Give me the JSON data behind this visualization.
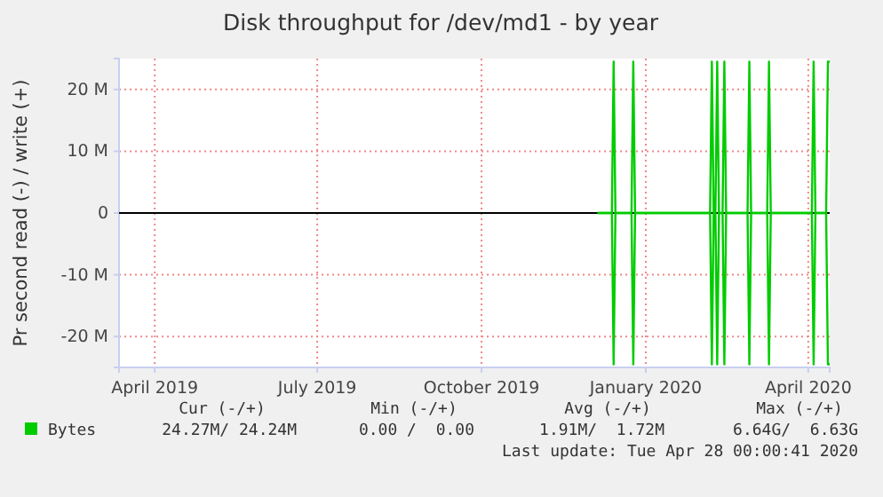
{
  "chart_data": {
    "type": "line",
    "title": "Disk throughput for /dev/md1 - by year",
    "ylabel": "Pr second read (-) / write (+)",
    "xlim": [
      "2019-03-27",
      "2020-04-28"
    ],
    "xticks": [
      {
        "value": "2019-04-16",
        "label": "April 2019"
      },
      {
        "value": "2019-07-16",
        "label": "July 2019"
      },
      {
        "value": "2019-10-16",
        "label": "October 2019"
      },
      {
        "value": "2020-01-16",
        "label": "January 2020"
      },
      {
        "value": "2020-04-16",
        "label": "April 2020"
      }
    ],
    "ylim": [
      -25000000,
      25000000
    ],
    "yticks": [
      {
        "value": -20000000,
        "label": "-20 M"
      },
      {
        "value": -10000000,
        "label": "-10 M"
      },
      0,
      {
        "value": 10000000,
        "label": "10 M"
      },
      {
        "value": 20000000,
        "label": "20 M"
      }
    ],
    "grid": true,
    "legend": "bottom left",
    "x": [
      "2019-12-20",
      "2019-12-28",
      "2019-12-29",
      "2019-12-30",
      "2020-01-08",
      "2020-01-09",
      "2020-01-10",
      "2020-02-21",
      "2020-02-22",
      "2020-02-23",
      "2020-02-24",
      "2020-02-25",
      "2020-02-26",
      "2020-02-28",
      "2020-02-29",
      "2020-03-01",
      "2020-03-13",
      "2020-03-14",
      "2020-03-15",
      "2020-03-24",
      "2020-03-25",
      "2020-03-26",
      "2020-04-18",
      "2020-04-19",
      "2020-04-20",
      "2020-04-26",
      "2020-04-27",
      "2020-04-28"
    ],
    "series": [
      {
        "name": "Bytes",
        "color": "#00cc00",
        "values": [
          0,
          0,
          24500000,
          0,
          0,
          24500000,
          0,
          0,
          24500000,
          0,
          0,
          24500000,
          0,
          0,
          24500000,
          0,
          0,
          24500000,
          0,
          0,
          24500000,
          0,
          0,
          24500000,
          0,
          0,
          24500000,
          24500000
        ]
      },
      {
        "color": "#00cc00",
        "values": [
          0,
          0,
          -24500000,
          0,
          0,
          -24500000,
          0,
          0,
          -24500000,
          0,
          0,
          -24500000,
          0,
          0,
          -24500000,
          0,
          0,
          -24500000,
          0,
          0,
          -24500000,
          0,
          0,
          -24500000,
          0,
          0,
          -24500000,
          -24500000
        ]
      }
    ],
    "ref_lines": [
      {
        "axis": "y",
        "value": 0,
        "color": "#000000"
      }
    ],
    "annotations": [
      "Cur (-/+)",
      "Min (-/+)",
      "Avg (-/+)",
      "Max (-/+)",
      "24.27M/ 24.24M",
      "0.00 /  0.00",
      "1.91M/  1.72M",
      "6.64G/  6.63G",
      "Last update: Tue Apr 28 00:00:41 2020"
    ]
  }
}
